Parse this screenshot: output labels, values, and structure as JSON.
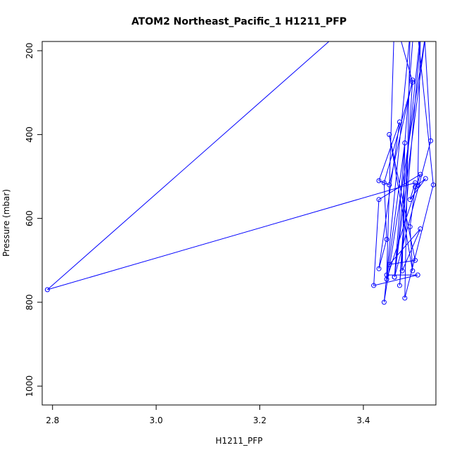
{
  "chart_data": {
    "type": "line",
    "title": "ATOM2 Northeast_Pacific_1 H1211_PFP",
    "xlabel": "H1211_PFP",
    "ylabel": "Pressure (mbar)",
    "xlim": [
      2.78,
      3.54
    ],
    "ylim": [
      1045,
      178
    ],
    "y_reversed": true,
    "x_ticks": [
      "2.8",
      "3.0",
      "3.2",
      "3.4"
    ],
    "y_ticks": [
      "200",
      "400",
      "600",
      "800",
      "1000"
    ],
    "grid": false,
    "series": [
      {
        "color": "#0000ff",
        "points": [
          [
            3.505,
            520
          ],
          [
            3.51,
            160
          ],
          [
            3.46,
            740
          ],
          [
            3.52,
            160
          ],
          [
            3.44,
            800
          ],
          [
            3.49,
            160
          ],
          [
            3.48,
            790
          ],
          [
            3.535,
            520
          ],
          [
            3.5,
            100
          ],
          [
            3.46,
            740
          ],
          [
            3.53,
            415
          ],
          [
            3.515,
            100
          ],
          [
            3.47,
            760
          ],
          [
            3.495,
            270
          ],
          [
            3.45,
            520
          ],
          [
            3.43,
            510
          ],
          [
            3.47,
            370
          ],
          [
            3.43,
            720
          ],
          [
            3.445,
            650
          ],
          [
            3.44,
            515
          ],
          [
            3.495,
            275
          ],
          [
            3.46,
            120
          ],
          [
            3.445,
            735
          ],
          [
            3.505,
            735
          ],
          [
            3.42,
            760
          ],
          [
            3.43,
            555
          ],
          [
            3.51,
            495
          ],
          [
            3.445,
            745
          ],
          [
            3.48,
            420
          ],
          [
            3.475,
            725
          ],
          [
            3.51,
            625
          ],
          [
            3.45,
            710
          ],
          [
            3.5,
            700
          ],
          [
            3.45,
            400
          ],
          [
            3.495,
            725
          ],
          [
            3.49,
            620
          ],
          [
            3.5,
            525
          ],
          [
            3.52,
            505
          ],
          [
            3.49,
            555
          ],
          [
            3.5,
            515
          ],
          [
            2.79,
            770
          ],
          [
            3.35,
            160
          ]
        ]
      }
    ]
  }
}
